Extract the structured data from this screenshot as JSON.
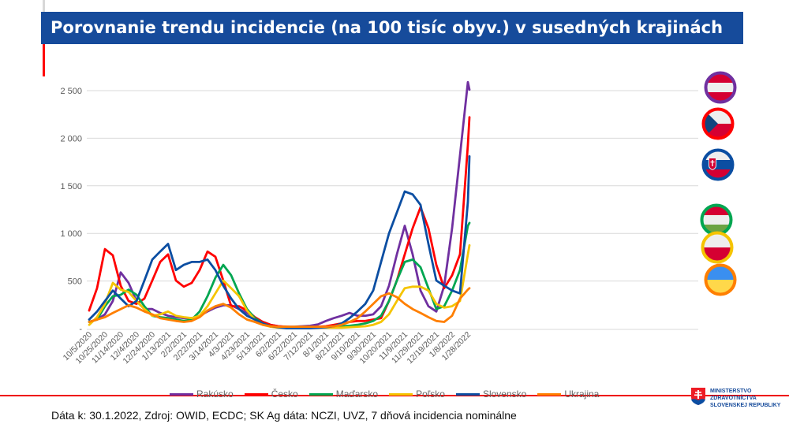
{
  "title": "Porovnanie trendu incidencie (na 100 tisíc obyv.) v susedných krajinách",
  "footer": "Dáta k: 30.1.2022, Zdroj: OWID, ECDC; SK Ag dáta: NCZI, UVZ, 7 dňová incidencia nominálne",
  "logo": {
    "line1": "MINISTERSTVO",
    "line2": "ZDRAVOTNÍCTVA",
    "line3": "SLOVENSKEJ REPUBLIKY"
  },
  "flags": [
    {
      "country": "Rakúsko",
      "ring": "#7030a0"
    },
    {
      "country": "Česko",
      "ring": "#ff0000"
    },
    {
      "country": "Slovensko",
      "ring": "#0b4ea2"
    },
    {
      "country": "Maďarsko",
      "ring": "#00a651"
    },
    {
      "country": "Poľsko",
      "ring": "#f5c400"
    },
    {
      "country": "Ukrajina",
      "ring": "#ff7f00"
    }
  ],
  "chart_data": {
    "type": "line",
    "title": "",
    "xlabel": "",
    "ylabel": "",
    "ylim": [
      0,
      2500
    ],
    "yticks": [
      0,
      500,
      1000,
      1500,
      2000,
      2500
    ],
    "ytick_labels": [
      "-",
      "500",
      "1 000",
      "1 500",
      "2 000",
      "2 500"
    ],
    "grid": true,
    "legend": "bottom",
    "xtick_labels": [
      "10/5/2020",
      "10/25/2020",
      "11/14/2020",
      "12/4/2020",
      "12/24/2020",
      "1/13/2021",
      "2/2/2021",
      "2/22/2021",
      "3/14/2021",
      "4/3/2021",
      "4/23/2021",
      "5/13/2021",
      "6/2/2021",
      "6/22/2021",
      "7/12/2021",
      "8/1/2021",
      "8/21/2021",
      "9/10/2021",
      "9/30/2021",
      "10/20/2021",
      "11/9/2021",
      "11/29/2021",
      "12/19/2021",
      "1/8/2022",
      "1/28/2022"
    ],
    "x": [
      "2020-10-05",
      "2020-10-15",
      "2020-10-25",
      "2020-11-04",
      "2020-11-14",
      "2020-11-24",
      "2020-12-04",
      "2020-12-14",
      "2020-12-24",
      "2021-01-03",
      "2021-01-13",
      "2021-01-23",
      "2021-02-02",
      "2021-02-12",
      "2021-02-22",
      "2021-03-04",
      "2021-03-14",
      "2021-03-24",
      "2021-04-03",
      "2021-04-13",
      "2021-04-23",
      "2021-05-03",
      "2021-05-13",
      "2021-05-23",
      "2021-06-02",
      "2021-06-12",
      "2021-06-22",
      "2021-07-02",
      "2021-07-12",
      "2021-07-22",
      "2021-08-01",
      "2021-08-11",
      "2021-08-21",
      "2021-08-31",
      "2021-09-10",
      "2021-09-20",
      "2021-09-30",
      "2021-10-10",
      "2021-10-20",
      "2021-10-30",
      "2021-11-09",
      "2021-11-19",
      "2021-11-29",
      "2021-12-09",
      "2021-12-19",
      "2021-12-29",
      "2022-01-08",
      "2022-01-18",
      "2022-01-28",
      "2022-01-30"
    ],
    "series": [
      {
        "name": "Rakúsko",
        "color": "#7030a0",
        "values": [
          70,
          95,
          150,
          290,
          590,
          480,
          290,
          205,
          205,
          165,
          135,
          120,
          110,
          110,
          135,
          180,
          220,
          245,
          245,
          205,
          165,
          110,
          70,
          40,
          25,
          20,
          20,
          25,
          30,
          45,
          80,
          110,
          135,
          165,
          135,
          135,
          150,
          235,
          450,
          780,
          1080,
          780,
          400,
          235,
          180,
          450,
          1055,
          1820,
          2590,
          2510
        ]
      },
      {
        "name": "Česko",
        "color": "#ff0000",
        "values": [
          190,
          425,
          835,
          770,
          450,
          290,
          260,
          315,
          505,
          700,
          780,
          505,
          440,
          480,
          615,
          810,
          755,
          505,
          235,
          235,
          190,
          120,
          70,
          40,
          25,
          20,
          15,
          15,
          15,
          20,
          25,
          40,
          55,
          70,
          80,
          80,
          95,
          110,
          290,
          505,
          780,
          1055,
          1275,
          1055,
          670,
          425,
          560,
          780,
          1930,
          2220
        ]
      },
      {
        "name": "Maďarsko",
        "color": "#00a651",
        "values": [
          70,
          95,
          235,
          340,
          355,
          410,
          355,
          235,
          135,
          120,
          110,
          95,
          80,
          95,
          180,
          340,
          535,
          670,
          560,
          370,
          205,
          110,
          55,
          25,
          15,
          15,
          15,
          15,
          15,
          15,
          15,
          20,
          25,
          30,
          40,
          55,
          80,
          135,
          290,
          505,
          700,
          725,
          645,
          425,
          205,
          235,
          400,
          615,
          1080,
          1110
        ]
      },
      {
        "name": "Poľsko",
        "color": "#f5c400",
        "values": [
          40,
          120,
          260,
          480,
          410,
          385,
          290,
          205,
          135,
          150,
          180,
          135,
          120,
          110,
          135,
          235,
          370,
          505,
          425,
          340,
          190,
          95,
          40,
          20,
          10,
          10,
          10,
          10,
          10,
          10,
          10,
          10,
          10,
          15,
          20,
          25,
          40,
          70,
          150,
          290,
          425,
          440,
          440,
          400,
          260,
          220,
          235,
          290,
          780,
          875
        ]
      },
      {
        "name": "Slovensko",
        "color": "#0b4ea2",
        "values": [
          95,
          180,
          290,
          400,
          315,
          235,
          290,
          505,
          725,
          810,
          890,
          615,
          670,
          700,
          700,
          725,
          615,
          450,
          315,
          205,
          135,
          95,
          55,
          25,
          15,
          5,
          5,
          5,
          5,
          10,
          15,
          25,
          55,
          110,
          180,
          260,
          400,
          700,
          1000,
          1220,
          1440,
          1410,
          1300,
          890,
          505,
          450,
          400,
          370,
          1330,
          1810
        ]
      },
      {
        "name": "Ukrajina",
        "color": "#ff7f00",
        "values": [
          70,
          95,
          120,
          165,
          205,
          245,
          220,
          180,
          150,
          110,
          95,
          80,
          70,
          80,
          120,
          190,
          235,
          260,
          220,
          150,
          95,
          70,
          40,
          25,
          20,
          20,
          20,
          20,
          20,
          20,
          20,
          25,
          40,
          70,
          110,
          180,
          260,
          340,
          370,
          330,
          260,
          205,
          165,
          120,
          80,
          70,
          135,
          315,
          410,
          425
        ]
      }
    ]
  }
}
